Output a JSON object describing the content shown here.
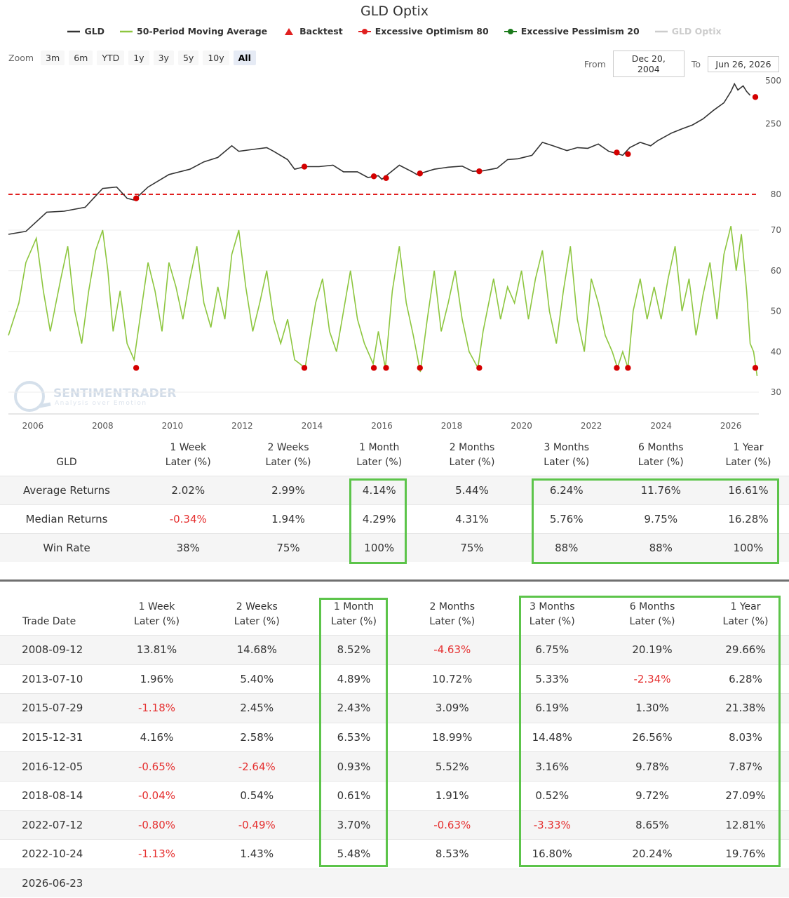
{
  "header": {
    "title": "GLD Optix",
    "legend": [
      {
        "label": "GLD",
        "symbol": "line",
        "color": "#333333"
      },
      {
        "label": "50-Period Moving Average",
        "symbol": "line",
        "color": "#8dc63f"
      },
      {
        "label": "Backtest",
        "symbol": "triangle",
        "color": "#e02020"
      },
      {
        "label": "Excessive Optimism 80",
        "symbol": "dash-marker",
        "color": "#e02020"
      },
      {
        "label": "Excessive Pessimism 20",
        "symbol": "dash-marker",
        "color": "#1a7a1a"
      },
      {
        "label": "GLD Optix",
        "symbol": "line",
        "color": "#cccccc",
        "inactive": true
      }
    ]
  },
  "zoom": {
    "label": "Zoom",
    "buttons": [
      "3m",
      "6m",
      "YTD",
      "1y",
      "3y",
      "5y",
      "10y",
      "All"
    ],
    "active": "All"
  },
  "range": {
    "from_label": "From",
    "from": "Dec 20, 2004",
    "to_label": "To",
    "to": "Jun 26, 2026"
  },
  "watermark": {
    "brand": "SENTIMENTRADER",
    "tagline": "Analysis over Emotion"
  },
  "chart_data": {
    "type": "line",
    "x_ticks": [
      "2006",
      "2008",
      "2010",
      "2012",
      "2014",
      "2016",
      "2018",
      "2020",
      "2022",
      "2024",
      "2026"
    ],
    "xlim": [
      2005.3,
      2026.8
    ],
    "price_panel": {
      "series": "GLD",
      "y_ticks": [
        80,
        250,
        500
      ],
      "excessive_optimism_line": 80,
      "points": [
        [
          2005.3,
          42
        ],
        [
          2005.8,
          44
        ],
        [
          2006.4,
          60
        ],
        [
          2006.9,
          61
        ],
        [
          2007.5,
          65
        ],
        [
          2008.0,
          88
        ],
        [
          2008.4,
          90
        ],
        [
          2008.7,
          75
        ],
        [
          2008.9,
          73
        ],
        [
          2009.3,
          90
        ],
        [
          2009.9,
          110
        ],
        [
          2010.5,
          120
        ],
        [
          2010.9,
          135
        ],
        [
          2011.3,
          145
        ],
        [
          2011.7,
          175
        ],
        [
          2011.9,
          160
        ],
        [
          2012.3,
          165
        ],
        [
          2012.7,
          170
        ],
        [
          2012.9,
          160
        ],
        [
          2013.3,
          140
        ],
        [
          2013.5,
          120
        ],
        [
          2013.8,
          125
        ],
        [
          2014.2,
          125
        ],
        [
          2014.6,
          128
        ],
        [
          2014.9,
          115
        ],
        [
          2015.3,
          115
        ],
        [
          2015.6,
          105
        ],
        [
          2015.9,
          108
        ],
        [
          2016.0,
          102
        ],
        [
          2016.5,
          128
        ],
        [
          2016.9,
          114
        ],
        [
          2017.0,
          110
        ],
        [
          2017.5,
          120
        ],
        [
          2017.9,
          124
        ],
        [
          2018.3,
          126
        ],
        [
          2018.6,
          116
        ],
        [
          2018.9,
          117
        ],
        [
          2019.3,
          122
        ],
        [
          2019.6,
          140
        ],
        [
          2019.9,
          142
        ],
        [
          2020.3,
          150
        ],
        [
          2020.6,
          185
        ],
        [
          2020.9,
          175
        ],
        [
          2021.3,
          162
        ],
        [
          2021.6,
          170
        ],
        [
          2021.9,
          168
        ],
        [
          2022.2,
          180
        ],
        [
          2022.5,
          160
        ],
        [
          2022.7,
          155
        ],
        [
          2022.9,
          150
        ],
        [
          2023.1,
          170
        ],
        [
          2023.4,
          185
        ],
        [
          2023.7,
          175
        ],
        [
          2023.9,
          190
        ],
        [
          2024.3,
          215
        ],
        [
          2024.6,
          230
        ],
        [
          2024.9,
          245
        ],
        [
          2025.2,
          270
        ],
        [
          2025.5,
          310
        ],
        [
          2025.8,
          350
        ],
        [
          2026.0,
          420
        ],
        [
          2026.1,
          475
        ],
        [
          2026.2,
          430
        ],
        [
          2026.35,
          460
        ],
        [
          2026.45,
          420
        ],
        [
          2026.55,
          395
        ]
      ],
      "backtest_signals": [
        [
          2008.96,
          75
        ],
        [
          2013.78,
          125
        ],
        [
          2015.77,
          107
        ],
        [
          2016.12,
          104
        ],
        [
          2017.09,
          112
        ],
        [
          2018.79,
          116
        ],
        [
          2022.73,
          157
        ],
        [
          2023.05,
          153
        ],
        [
          2026.7,
          384
        ]
      ]
    },
    "indicator_panel": {
      "series": "GLD Optix (50-Period Moving Average)",
      "y_ticks": [
        30,
        40,
        50,
        60,
        70
      ],
      "points": [
        [
          2005.3,
          44
        ],
        [
          2005.6,
          52
        ],
        [
          2005.8,
          62
        ],
        [
          2006.1,
          68
        ],
        [
          2006.3,
          55
        ],
        [
          2006.5,
          45
        ],
        [
          2006.8,
          58
        ],
        [
          2007.0,
          66
        ],
        [
          2007.2,
          50
        ],
        [
          2007.4,
          42
        ],
        [
          2007.6,
          55
        ],
        [
          2007.8,
          65
        ],
        [
          2008.0,
          70
        ],
        [
          2008.15,
          60
        ],
        [
          2008.3,
          45
        ],
        [
          2008.5,
          55
        ],
        [
          2008.7,
          42
        ],
        [
          2008.9,
          38
        ],
        [
          2009.1,
          50
        ],
        [
          2009.3,
          62
        ],
        [
          2009.5,
          55
        ],
        [
          2009.7,
          45
        ],
        [
          2009.9,
          62
        ],
        [
          2010.1,
          56
        ],
        [
          2010.3,
          48
        ],
        [
          2010.5,
          58
        ],
        [
          2010.7,
          66
        ],
        [
          2010.9,
          52
        ],
        [
          2011.1,
          46
        ],
        [
          2011.3,
          56
        ],
        [
          2011.5,
          48
        ],
        [
          2011.7,
          64
        ],
        [
          2011.9,
          70
        ],
        [
          2012.1,
          56
        ],
        [
          2012.3,
          45
        ],
        [
          2012.5,
          52
        ],
        [
          2012.7,
          60
        ],
        [
          2012.9,
          48
        ],
        [
          2013.1,
          42
        ],
        [
          2013.3,
          48
        ],
        [
          2013.5,
          38
        ],
        [
          2013.8,
          36
        ],
        [
          2014.1,
          52
        ],
        [
          2014.3,
          58
        ],
        [
          2014.5,
          45
        ],
        [
          2014.7,
          40
        ],
        [
          2014.9,
          50
        ],
        [
          2015.1,
          60
        ],
        [
          2015.3,
          48
        ],
        [
          2015.5,
          42
        ],
        [
          2015.75,
          37
        ],
        [
          2015.9,
          45
        ],
        [
          2016.1,
          36
        ],
        [
          2016.3,
          55
        ],
        [
          2016.5,
          66
        ],
        [
          2016.7,
          52
        ],
        [
          2016.9,
          44
        ],
        [
          2017.1,
          35
        ],
        [
          2017.3,
          48
        ],
        [
          2017.5,
          60
        ],
        [
          2017.7,
          45
        ],
        [
          2017.9,
          52
        ],
        [
          2018.1,
          60
        ],
        [
          2018.3,
          48
        ],
        [
          2018.5,
          40
        ],
        [
          2018.75,
          36
        ],
        [
          2018.9,
          45
        ],
        [
          2019.2,
          58
        ],
        [
          2019.4,
          48
        ],
        [
          2019.6,
          56
        ],
        [
          2019.8,
          52
        ],
        [
          2020.0,
          60
        ],
        [
          2020.2,
          48
        ],
        [
          2020.4,
          58
        ],
        [
          2020.6,
          65
        ],
        [
          2020.8,
          50
        ],
        [
          2021.0,
          42
        ],
        [
          2021.2,
          55
        ],
        [
          2021.4,
          66
        ],
        [
          2021.6,
          48
        ],
        [
          2021.8,
          40
        ],
        [
          2022.0,
          58
        ],
        [
          2022.2,
          52
        ],
        [
          2022.4,
          44
        ],
        [
          2022.6,
          40
        ],
        [
          2022.75,
          36
        ],
        [
          2022.9,
          40
        ],
        [
          2023.05,
          36
        ],
        [
          2023.2,
          50
        ],
        [
          2023.4,
          58
        ],
        [
          2023.6,
          48
        ],
        [
          2023.8,
          56
        ],
        [
          2024.0,
          48
        ],
        [
          2024.2,
          58
        ],
        [
          2024.4,
          66
        ],
        [
          2024.6,
          50
        ],
        [
          2024.8,
          58
        ],
        [
          2025.0,
          44
        ],
        [
          2025.2,
          54
        ],
        [
          2025.4,
          62
        ],
        [
          2025.6,
          48
        ],
        [
          2025.8,
          64
        ],
        [
          2026.0,
          71
        ],
        [
          2026.15,
          60
        ],
        [
          2026.3,
          69
        ],
        [
          2026.45,
          55
        ],
        [
          2026.55,
          42
        ],
        [
          2026.65,
          40
        ],
        [
          2026.75,
          34
        ]
      ],
      "backtest_signals": [
        [
          2008.96,
          36
        ],
        [
          2013.78,
          36
        ],
        [
          2015.77,
          36
        ],
        [
          2016.12,
          36
        ],
        [
          2017.09,
          36
        ],
        [
          2018.79,
          36
        ],
        [
          2022.73,
          36
        ],
        [
          2023.05,
          36
        ],
        [
          2026.7,
          36
        ]
      ]
    }
  },
  "summary": {
    "corner_label": "GLD",
    "columns": [
      [
        "1 Week",
        "Later (%)"
      ],
      [
        "2 Weeks",
        "Later (%)"
      ],
      [
        "1 Month",
        "Later (%)"
      ],
      [
        "2 Months",
        "Later (%)"
      ],
      [
        "3 Months",
        "Later (%)"
      ],
      [
        "6 Months",
        "Later (%)"
      ],
      [
        "1 Year",
        "Later (%)"
      ]
    ],
    "rows": [
      {
        "label": "Average Returns",
        "values": [
          "2.02%",
          "2.99%",
          "4.14%",
          "5.44%",
          "6.24%",
          "11.76%",
          "16.61%"
        ]
      },
      {
        "label": "Median Returns",
        "values": [
          "-0.34%",
          "1.94%",
          "4.29%",
          "4.31%",
          "5.76%",
          "9.75%",
          "16.28%"
        ]
      },
      {
        "label": "Win Rate",
        "values": [
          "38%",
          "75%",
          "100%",
          "75%",
          "88%",
          "88%",
          "100%"
        ]
      }
    ]
  },
  "trades": {
    "corner_label": "Trade Date",
    "columns": [
      [
        "1 Week",
        "Later (%)"
      ],
      [
        "2 Weeks",
        "Later (%)"
      ],
      [
        "1 Month",
        "Later (%)"
      ],
      [
        "2 Months",
        "Later (%)"
      ],
      [
        "3 Months",
        "Later (%)"
      ],
      [
        "6 Months",
        "Later (%)"
      ],
      [
        "1 Year",
        "Later (%)"
      ]
    ],
    "rows": [
      {
        "date": "2008-09-12",
        "values": [
          "13.81%",
          "14.68%",
          "8.52%",
          "-4.63%",
          "6.75%",
          "20.19%",
          "29.66%"
        ]
      },
      {
        "date": "2013-07-10",
        "values": [
          "1.96%",
          "5.40%",
          "4.89%",
          "10.72%",
          "5.33%",
          "-2.34%",
          "6.28%"
        ]
      },
      {
        "date": "2015-07-29",
        "values": [
          "-1.18%",
          "2.45%",
          "2.43%",
          "3.09%",
          "6.19%",
          "1.30%",
          "21.38%"
        ]
      },
      {
        "date": "2015-12-31",
        "values": [
          "4.16%",
          "2.58%",
          "6.53%",
          "18.99%",
          "14.48%",
          "26.56%",
          "8.03%"
        ]
      },
      {
        "date": "2016-12-05",
        "values": [
          "-0.65%",
          "-2.64%",
          "0.93%",
          "5.52%",
          "3.16%",
          "9.78%",
          "7.87%"
        ]
      },
      {
        "date": "2018-08-14",
        "values": [
          "-0.04%",
          "0.54%",
          "0.61%",
          "1.91%",
          "0.52%",
          "9.72%",
          "27.09%"
        ]
      },
      {
        "date": "2022-07-12",
        "values": [
          "-0.80%",
          "-0.49%",
          "3.70%",
          "-0.63%",
          "-3.33%",
          "8.65%",
          "12.81%"
        ]
      },
      {
        "date": "2022-10-24",
        "values": [
          "-1.13%",
          "1.43%",
          "5.48%",
          "8.53%",
          "16.80%",
          "20.24%",
          "19.76%"
        ]
      },
      {
        "date": "2026-06-23",
        "values": [
          "",
          "",
          "",
          "",
          "",
          "",
          ""
        ]
      }
    ]
  },
  "colors": {
    "highlight": "#5cc44a",
    "negative": "#e53030",
    "price": "#333333",
    "ma": "#8dc63f",
    "signal": "#d40000"
  }
}
